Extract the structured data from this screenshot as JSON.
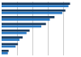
{
  "chart_data": {
    "type": "bar",
    "orientation": "horizontal",
    "categories": [
      null,
      null,
      null,
      null,
      null,
      null,
      null,
      null
    ],
    "series": [
      {
        "color": "#1a3a5c",
        "values": [
          88,
          82,
          68,
          57,
          36,
          27,
          21,
          9
        ]
      },
      {
        "color": "#2778c4",
        "values": [
          86,
          78,
          62,
          51,
          32,
          23,
          18,
          8
        ]
      }
    ],
    "xlim": [
      0,
      100
    ],
    "xticks": [
      0,
      20,
      40,
      60,
      80,
      100
    ],
    "grid": true,
    "tick_labels": false
  }
}
